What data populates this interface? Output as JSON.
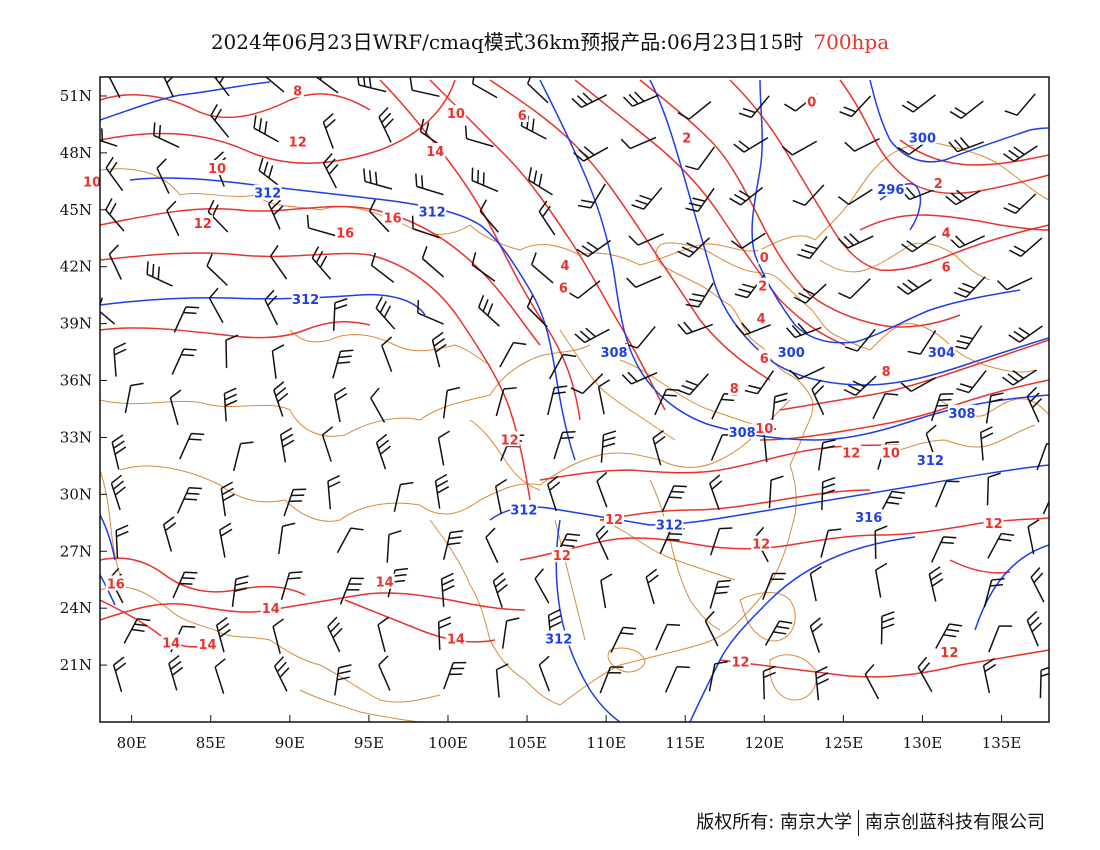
{
  "title": {
    "main": "2024年06月23日WRF/cmaq模式36km预报产品:06月23日15时",
    "level": "700hpa",
    "level_color": "#e8332f"
  },
  "axes": {
    "lat_labels": [
      "51N",
      "48N",
      "45N",
      "42N",
      "39N",
      "36N",
      "33N",
      "30N",
      "27N",
      "24N",
      "21N"
    ],
    "lon_labels": [
      "80E",
      "85E",
      "90E",
      "95E",
      "100E",
      "105E",
      "110E",
      "115E",
      "120E",
      "125E",
      "130E",
      "135E"
    ],
    "lon_range": [
      78,
      138
    ],
    "lat_range": [
      18,
      52
    ]
  },
  "colors": {
    "temperature": "#e8332f",
    "geopotential": "#1e3ee6",
    "boundary": "#d98a3c",
    "wind": "#111111"
  },
  "temperature_labels": [
    {
      "text": "8",
      "lon": 90.5,
      "lat": 51.3
    },
    {
      "text": "10",
      "lon": 77.5,
      "lat": 46.5
    },
    {
      "text": "10",
      "lon": 85.4,
      "lat": 47.2
    },
    {
      "text": "12",
      "lon": 90.5,
      "lat": 48.6
    },
    {
      "text": "12",
      "lon": 84.5,
      "lat": 44.3
    },
    {
      "text": "14",
      "lon": 99.2,
      "lat": 48.1
    },
    {
      "text": "16",
      "lon": 96.5,
      "lat": 44.6
    },
    {
      "text": "16",
      "lon": 93.5,
      "lat": 43.8
    },
    {
      "text": "10",
      "lon": 100.5,
      "lat": 50.1
    },
    {
      "text": "6",
      "lon": 104.7,
      "lat": 50.0
    },
    {
      "text": "2",
      "lon": 115.1,
      "lat": 48.8
    },
    {
      "text": "0",
      "lon": 123.0,
      "lat": 50.7
    },
    {
      "text": "4",
      "lon": 107.4,
      "lat": 42.1
    },
    {
      "text": "6",
      "lon": 107.3,
      "lat": 40.9
    },
    {
      "text": "0",
      "lon": 120.0,
      "lat": 42.5
    },
    {
      "text": "2",
      "lon": 119.9,
      "lat": 41.0
    },
    {
      "text": "4",
      "lon": 119.8,
      "lat": 39.3
    },
    {
      "text": "6",
      "lon": 120.0,
      "lat": 37.2
    },
    {
      "text": "8",
      "lon": 118.1,
      "lat": 35.6
    },
    {
      "text": "2",
      "lon": 131.0,
      "lat": 46.4
    },
    {
      "text": "4",
      "lon": 131.5,
      "lat": 43.8
    },
    {
      "text": "6",
      "lon": 131.5,
      "lat": 42.0
    },
    {
      "text": "8",
      "lon": 127.7,
      "lat": 36.5
    },
    {
      "text": "10",
      "lon": 120.0,
      "lat": 33.5
    },
    {
      "text": "12",
      "lon": 103.9,
      "lat": 32.9
    },
    {
      "text": "12",
      "lon": 125.5,
      "lat": 32.2
    },
    {
      "text": "10",
      "lon": 128.0,
      "lat": 32.2
    },
    {
      "text": "12",
      "lon": 110.5,
      "lat": 28.7
    },
    {
      "text": "12",
      "lon": 107.2,
      "lat": 26.8
    },
    {
      "text": "12",
      "lon": 119.8,
      "lat": 27.4
    },
    {
      "text": "12",
      "lon": 134.5,
      "lat": 28.5
    },
    {
      "text": "14",
      "lon": 96.0,
      "lat": 25.4
    },
    {
      "text": "14",
      "lon": 88.8,
      "lat": 24.0
    },
    {
      "text": "14",
      "lon": 100.5,
      "lat": 22.4
    },
    {
      "text": "14",
      "lon": 82.5,
      "lat": 22.2
    },
    {
      "text": "14",
      "lon": 84.8,
      "lat": 22.1
    },
    {
      "text": "16",
      "lon": 79.0,
      "lat": 25.3
    },
    {
      "text": "12",
      "lon": 118.5,
      "lat": 21.2
    },
    {
      "text": "12",
      "lon": 131.7,
      "lat": 21.7
    }
  ],
  "geopotential_labels": [
    {
      "text": "312",
      "lon": 88.6,
      "lat": 45.9
    },
    {
      "text": "312",
      "lon": 99.0,
      "lat": 44.9
    },
    {
      "text": "312",
      "lon": 91.0,
      "lat": 40.3
    },
    {
      "text": "308",
      "lon": 110.5,
      "lat": 37.5
    },
    {
      "text": "300",
      "lon": 121.7,
      "lat": 37.5
    },
    {
      "text": "304",
      "lon": 131.2,
      "lat": 37.5
    },
    {
      "text": "308",
      "lon": 132.5,
      "lat": 34.3
    },
    {
      "text": "308",
      "lon": 118.6,
      "lat": 33.3
    },
    {
      "text": "312",
      "lon": 130.5,
      "lat": 31.8
    },
    {
      "text": "316",
      "lon": 126.6,
      "lat": 28.8
    },
    {
      "text": "312",
      "lon": 104.8,
      "lat": 29.2
    },
    {
      "text": "312",
      "lon": 114.0,
      "lat": 28.4
    },
    {
      "text": "312",
      "lon": 107.0,
      "lat": 22.4
    },
    {
      "text": "300",
      "lon": 130.0,
      "lat": 48.8
    },
    {
      "text": "296",
      "lon": 128.0,
      "lat": 46.1
    }
  ],
  "footer": {
    "left": "版权所有: 南京大学",
    "right": "南京创蓝科技有限公司"
  }
}
